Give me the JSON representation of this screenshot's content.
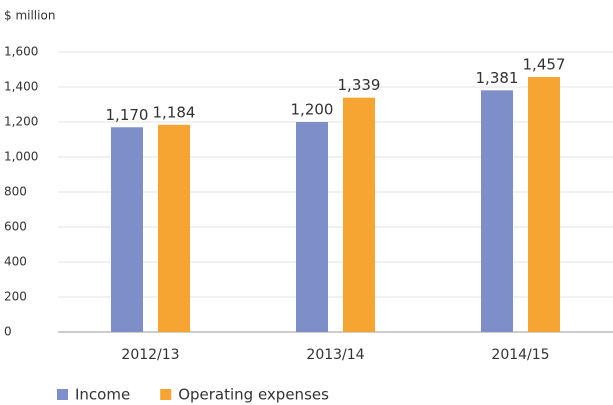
{
  "chart_data": {
    "type": "bar",
    "y_axis_label": "$ million",
    "categories": [
      "2012/13",
      "2013/14",
      "2014/15"
    ],
    "series": [
      {
        "name": "Income",
        "color": "#7e8ec8",
        "values": [
          1170,
          1200,
          1381
        ],
        "value_labels": [
          "1,170",
          "1,200",
          "1,381"
        ]
      },
      {
        "name": "Operating expenses",
        "color": "#f6a533",
        "values": [
          1184,
          1339,
          1457
        ],
        "value_labels": [
          "1,184",
          "1,339",
          "1,457"
        ]
      }
    ],
    "ylim": [
      0,
      1600
    ],
    "yticks": [
      0,
      200,
      400,
      600,
      800,
      {
        "value": 1000,
        "label": "1,000"
      },
      {
        "value": 1200,
        "label": "1,200"
      },
      {
        "value": 1400,
        "label": "1,400"
      },
      {
        "value": 1600,
        "label": "1,600"
      }
    ],
    "grid": true,
    "legend": "bottom"
  }
}
